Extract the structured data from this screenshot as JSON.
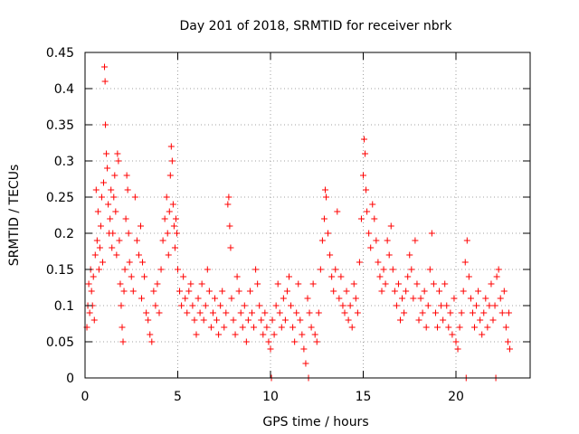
{
  "chart_data": {
    "type": "scatter",
    "title": "Day 201 of 2018, SRMTID for receiver nbrk",
    "xlabel": "GPS time / hours",
    "ylabel": "SRMTID / TECUs",
    "xlim": [
      0,
      24
    ],
    "ylim": [
      0,
      0.45
    ],
    "xticks": [
      0,
      5,
      10,
      15,
      20
    ],
    "xtick_labels": [
      "0",
      "5",
      "10",
      "15",
      "20"
    ],
    "yticks": [
      0,
      0.05,
      0.1,
      0.15,
      0.2,
      0.25,
      0.3,
      0.35,
      0.4,
      0.45
    ],
    "ytick_labels": [
      "0",
      "0.05",
      "0.1",
      "0.15",
      "0.2",
      "0.25",
      "0.3",
      "0.35",
      "0.4",
      "0.45"
    ],
    "grid": true,
    "marker": "+",
    "color": "#ff0000",
    "series": [
      {
        "name": "SRMTID",
        "points": [
          [
            0.1,
            0.07
          ],
          [
            0.15,
            0.1
          ],
          [
            0.2,
            0.13
          ],
          [
            0.25,
            0.09
          ],
          [
            0.3,
            0.15
          ],
          [
            0.35,
            0.12
          ],
          [
            0.4,
            0.1
          ],
          [
            0.45,
            0.14
          ],
          [
            0.5,
            0.08
          ],
          [
            0.55,
            0.17
          ],
          [
            0.6,
            0.26
          ],
          [
            0.65,
            0.19
          ],
          [
            0.7,
            0.23
          ],
          [
            0.75,
            0.15
          ],
          [
            0.8,
            0.18
          ],
          [
            0.85,
            0.21
          ],
          [
            0.9,
            0.25
          ],
          [
            0.95,
            0.16
          ],
          [
            1.0,
            0.27
          ],
          [
            1.05,
            0.43
          ],
          [
            1.08,
            0.41
          ],
          [
            1.1,
            0.35
          ],
          [
            1.15,
            0.31
          ],
          [
            1.2,
            0.29
          ],
          [
            1.25,
            0.24
          ],
          [
            1.3,
            0.2
          ],
          [
            1.35,
            0.22
          ],
          [
            1.4,
            0.26
          ],
          [
            1.45,
            0.18
          ],
          [
            1.5,
            0.2
          ],
          [
            1.55,
            0.25
          ],
          [
            1.6,
            0.28
          ],
          [
            1.65,
            0.23
          ],
          [
            1.7,
            0.17
          ],
          [
            1.75,
            0.31
          ],
          [
            1.8,
            0.3
          ],
          [
            1.85,
            0.19
          ],
          [
            1.9,
            0.13
          ],
          [
            1.95,
            0.1
          ],
          [
            2.0,
            0.07
          ],
          [
            2.05,
            0.05
          ],
          [
            2.1,
            0.12
          ],
          [
            2.15,
            0.15
          ],
          [
            2.2,
            0.22
          ],
          [
            2.25,
            0.28
          ],
          [
            2.3,
            0.26
          ],
          [
            2.35,
            0.2
          ],
          [
            2.4,
            0.16
          ],
          [
            2.5,
            0.14
          ],
          [
            2.6,
            0.12
          ],
          [
            2.7,
            0.25
          ],
          [
            2.8,
            0.19
          ],
          [
            2.9,
            0.17
          ],
          [
            3.0,
            0.21
          ],
          [
            3.05,
            0.11
          ],
          [
            3.1,
            0.16
          ],
          [
            3.2,
            0.14
          ],
          [
            3.3,
            0.09
          ],
          [
            3.4,
            0.08
          ],
          [
            3.5,
            0.06
          ],
          [
            3.6,
            0.05
          ],
          [
            3.7,
            0.12
          ],
          [
            3.8,
            0.1
          ],
          [
            3.9,
            0.13
          ],
          [
            4.0,
            0.09
          ],
          [
            4.1,
            0.15
          ],
          [
            4.2,
            0.19
          ],
          [
            4.3,
            0.22
          ],
          [
            4.4,
            0.25
          ],
          [
            4.45,
            0.2
          ],
          [
            4.5,
            0.17
          ],
          [
            4.55,
            0.23
          ],
          [
            4.6,
            0.28
          ],
          [
            4.65,
            0.32
          ],
          [
            4.7,
            0.3
          ],
          [
            4.75,
            0.24
          ],
          [
            4.8,
            0.21
          ],
          [
            4.85,
            0.18
          ],
          [
            4.9,
            0.22
          ],
          [
            4.95,
            0.2
          ],
          [
            5.0,
            0.15
          ],
          [
            5.1,
            0.12
          ],
          [
            5.2,
            0.1
          ],
          [
            5.3,
            0.14
          ],
          [
            5.4,
            0.11
          ],
          [
            5.5,
            0.09
          ],
          [
            5.6,
            0.12
          ],
          [
            5.7,
            0.13
          ],
          [
            5.8,
            0.1
          ],
          [
            5.9,
            0.08
          ],
          [
            6.0,
            0.06
          ],
          [
            6.1,
            0.11
          ],
          [
            6.2,
            0.09
          ],
          [
            6.3,
            0.13
          ],
          [
            6.4,
            0.08
          ],
          [
            6.5,
            0.1
          ],
          [
            6.6,
            0.15
          ],
          [
            6.7,
            0.12
          ],
          [
            6.8,
            0.07
          ],
          [
            6.9,
            0.09
          ],
          [
            7.0,
            0.11
          ],
          [
            7.1,
            0.08
          ],
          [
            7.2,
            0.06
          ],
          [
            7.3,
            0.1
          ],
          [
            7.4,
            0.12
          ],
          [
            7.5,
            0.07
          ],
          [
            7.6,
            0.09
          ],
          [
            7.7,
            0.24
          ],
          [
            7.75,
            0.25
          ],
          [
            7.8,
            0.21
          ],
          [
            7.85,
            0.18
          ],
          [
            7.9,
            0.11
          ],
          [
            8.0,
            0.08
          ],
          [
            8.1,
            0.06
          ],
          [
            8.2,
            0.14
          ],
          [
            8.3,
            0.12
          ],
          [
            8.4,
            0.09
          ],
          [
            8.5,
            0.07
          ],
          [
            8.6,
            0.1
          ],
          [
            8.7,
            0.05
          ],
          [
            8.8,
            0.08
          ],
          [
            8.9,
            0.12
          ],
          [
            9.0,
            0.09
          ],
          [
            9.1,
            0.07
          ],
          [
            9.2,
            0.15
          ],
          [
            9.3,
            0.13
          ],
          [
            9.4,
            0.1
          ],
          [
            9.5,
            0.08
          ],
          [
            9.6,
            0.06
          ],
          [
            9.7,
            0.09
          ],
          [
            9.8,
            0.07
          ],
          [
            9.9,
            0.05
          ],
          [
            10.0,
            0.04
          ],
          [
            10.05,
            0.0
          ],
          [
            10.1,
            0.08
          ],
          [
            10.2,
            0.06
          ],
          [
            10.3,
            0.1
          ],
          [
            10.4,
            0.13
          ],
          [
            10.5,
            0.09
          ],
          [
            10.6,
            0.07
          ],
          [
            10.7,
            0.11
          ],
          [
            10.8,
            0.08
          ],
          [
            10.9,
            0.12
          ],
          [
            11.0,
            0.14
          ],
          [
            11.1,
            0.1
          ],
          [
            11.2,
            0.07
          ],
          [
            11.3,
            0.05
          ],
          [
            11.4,
            0.09
          ],
          [
            11.5,
            0.13
          ],
          [
            11.6,
            0.08
          ],
          [
            11.7,
            0.06
          ],
          [
            11.8,
            0.04
          ],
          [
            11.9,
            0.02
          ],
          [
            12.0,
            0.11
          ],
          [
            12.05,
            0.0
          ],
          [
            12.1,
            0.09
          ],
          [
            12.2,
            0.07
          ],
          [
            12.3,
            0.13
          ],
          [
            12.4,
            0.06
          ],
          [
            12.5,
            0.05
          ],
          [
            12.6,
            0.09
          ],
          [
            12.7,
            0.15
          ],
          [
            12.8,
            0.19
          ],
          [
            12.9,
            0.22
          ],
          [
            12.95,
            0.26
          ],
          [
            13.0,
            0.25
          ],
          [
            13.1,
            0.2
          ],
          [
            13.2,
            0.17
          ],
          [
            13.3,
            0.14
          ],
          [
            13.4,
            0.12
          ],
          [
            13.5,
            0.15
          ],
          [
            13.6,
            0.23
          ],
          [
            13.7,
            0.11
          ],
          [
            13.8,
            0.14
          ],
          [
            13.9,
            0.1
          ],
          [
            14.0,
            0.09
          ],
          [
            14.1,
            0.12
          ],
          [
            14.2,
            0.08
          ],
          [
            14.3,
            0.1
          ],
          [
            14.4,
            0.07
          ],
          [
            14.5,
            0.13
          ],
          [
            14.6,
            0.11
          ],
          [
            14.7,
            0.09
          ],
          [
            14.8,
            0.16
          ],
          [
            14.9,
            0.22
          ],
          [
            15.0,
            0.28
          ],
          [
            15.05,
            0.33
          ],
          [
            15.1,
            0.31
          ],
          [
            15.15,
            0.26
          ],
          [
            15.2,
            0.23
          ],
          [
            15.3,
            0.2
          ],
          [
            15.4,
            0.18
          ],
          [
            15.5,
            0.24
          ],
          [
            15.6,
            0.22
          ],
          [
            15.7,
            0.19
          ],
          [
            15.8,
            0.16
          ],
          [
            15.9,
            0.14
          ],
          [
            16.0,
            0.12
          ],
          [
            16.1,
            0.15
          ],
          [
            16.2,
            0.13
          ],
          [
            16.3,
            0.19
          ],
          [
            16.4,
            0.17
          ],
          [
            16.5,
            0.21
          ],
          [
            16.6,
            0.15
          ],
          [
            16.7,
            0.12
          ],
          [
            16.8,
            0.1
          ],
          [
            16.9,
            0.13
          ],
          [
            17.0,
            0.08
          ],
          [
            17.1,
            0.11
          ],
          [
            17.2,
            0.09
          ],
          [
            17.3,
            0.12
          ],
          [
            17.4,
            0.14
          ],
          [
            17.5,
            0.17
          ],
          [
            17.6,
            0.15
          ],
          [
            17.7,
            0.11
          ],
          [
            17.8,
            0.19
          ],
          [
            17.9,
            0.13
          ],
          [
            18.0,
            0.08
          ],
          [
            18.1,
            0.11
          ],
          [
            18.2,
            0.09
          ],
          [
            18.3,
            0.12
          ],
          [
            18.4,
            0.07
          ],
          [
            18.5,
            0.1
          ],
          [
            18.6,
            0.15
          ],
          [
            18.7,
            0.2
          ],
          [
            18.8,
            0.13
          ],
          [
            18.9,
            0.09
          ],
          [
            19.0,
            0.07
          ],
          [
            19.1,
            0.12
          ],
          [
            19.2,
            0.1
          ],
          [
            19.3,
            0.08
          ],
          [
            19.4,
            0.13
          ],
          [
            19.5,
            0.1
          ],
          [
            19.6,
            0.07
          ],
          [
            19.7,
            0.09
          ],
          [
            19.8,
            0.06
          ],
          [
            19.9,
            0.11
          ],
          [
            20.0,
            0.05
          ],
          [
            20.1,
            0.04
          ],
          [
            20.2,
            0.07
          ],
          [
            20.3,
            0.09
          ],
          [
            20.4,
            0.12
          ],
          [
            20.5,
            0.16
          ],
          [
            20.55,
            0.0
          ],
          [
            20.6,
            0.19
          ],
          [
            20.7,
            0.14
          ],
          [
            20.8,
            0.11
          ],
          [
            20.9,
            0.09
          ],
          [
            21.0,
            0.07
          ],
          [
            21.1,
            0.1
          ],
          [
            21.2,
            0.12
          ],
          [
            21.3,
            0.08
          ],
          [
            21.4,
            0.06
          ],
          [
            21.5,
            0.09
          ],
          [
            21.6,
            0.11
          ],
          [
            21.7,
            0.07
          ],
          [
            21.8,
            0.1
          ],
          [
            21.9,
            0.13
          ],
          [
            22.0,
            0.08
          ],
          [
            22.1,
            0.1
          ],
          [
            22.15,
            0.0
          ],
          [
            22.2,
            0.14
          ],
          [
            22.3,
            0.15
          ],
          [
            22.4,
            0.11
          ],
          [
            22.5,
            0.09
          ],
          [
            22.6,
            0.12
          ],
          [
            22.7,
            0.07
          ],
          [
            22.8,
            0.05
          ],
          [
            22.85,
            0.09
          ],
          [
            22.9,
            0.04
          ]
        ]
      }
    ]
  }
}
